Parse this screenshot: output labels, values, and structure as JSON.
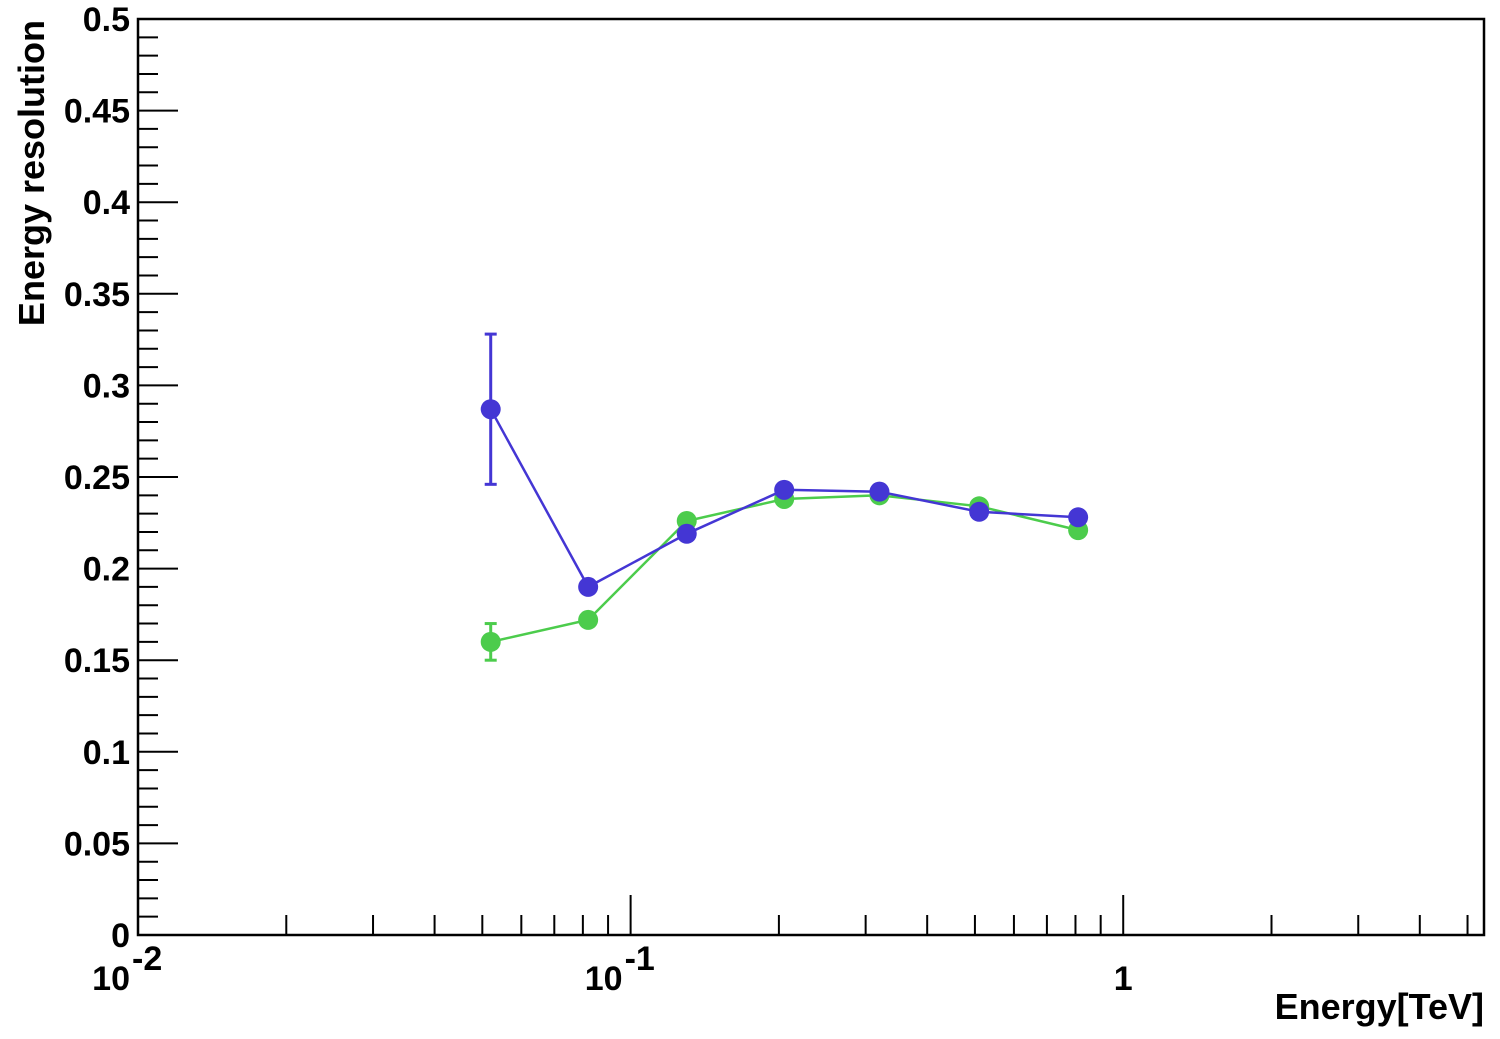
{
  "chart_data": {
    "type": "scatter",
    "title": "",
    "xlabel": "Energy[TeV]",
    "ylabel": "Energy resolution",
    "x_scale": "log",
    "xlim": [
      0.01,
      5.4
    ],
    "ylim": [
      0,
      0.5
    ],
    "grid": false,
    "x_tick_labels": [
      {
        "value": 0.01,
        "base": "10",
        "exp": "-2"
      },
      {
        "value": 0.1,
        "base": "10",
        "exp": "-1"
      },
      {
        "value": 1,
        "base": "1",
        "exp": ""
      }
    ],
    "y_tick_labels": [
      "0",
      "0.05",
      "0.1",
      "0.15",
      "0.2",
      "0.25",
      "0.3",
      "0.35",
      "0.4",
      "0.45",
      "0.5"
    ],
    "series": [
      {
        "color": "#4ccc4c",
        "x": [
          0.052,
          0.082,
          0.13,
          0.205,
          0.32,
          0.51,
          0.81
        ],
        "y": [
          0.16,
          0.172,
          0.226,
          0.238,
          0.24,
          0.234,
          0.221
        ],
        "yerr": [
          0.01,
          0,
          0,
          0,
          0,
          0,
          0
        ]
      },
      {
        "color": "#4436d4",
        "x": [
          0.052,
          0.082,
          0.13,
          0.205,
          0.32,
          0.51,
          0.81
        ],
        "y": [
          0.287,
          0.19,
          0.219,
          0.243,
          0.242,
          0.231,
          0.228
        ],
        "yerr": [
          0.041,
          0,
          0,
          0,
          0,
          0,
          0
        ]
      }
    ]
  }
}
